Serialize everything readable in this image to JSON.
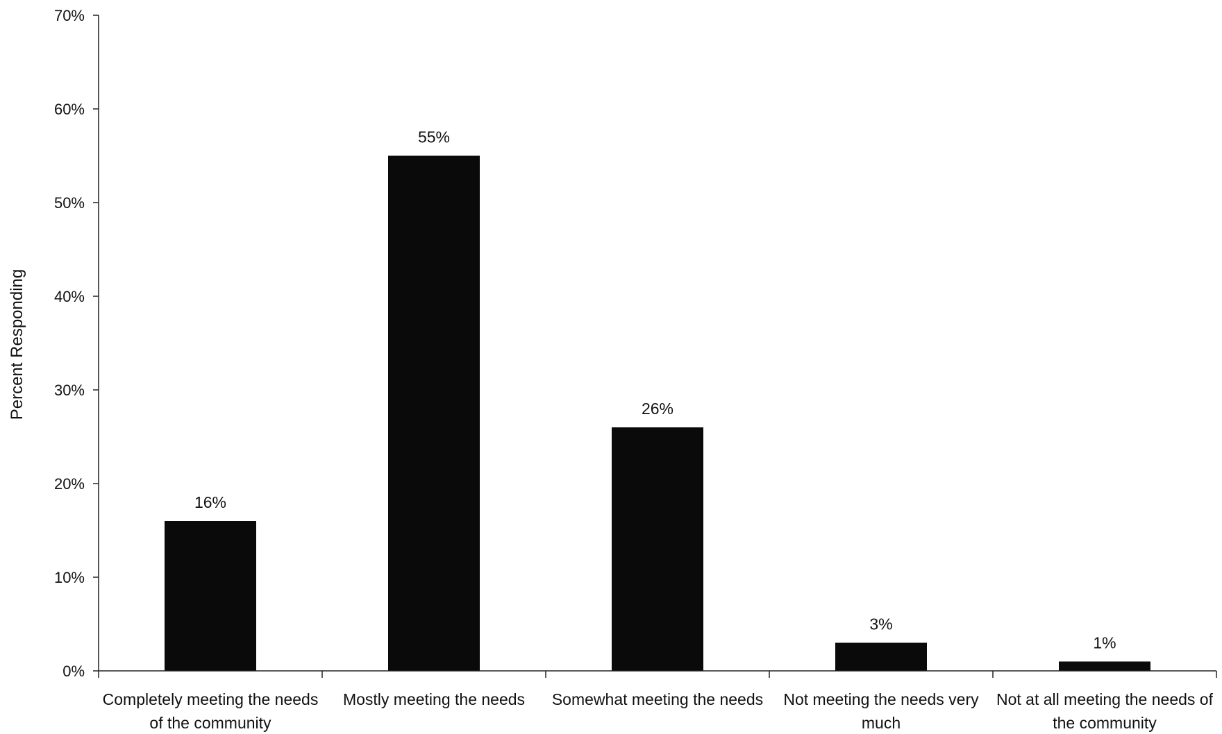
{
  "chart_data": {
    "type": "bar",
    "categories": [
      [
        "Completely meeting the needs",
        "of the community"
      ],
      [
        "Mostly meeting the needs"
      ],
      [
        "Somewhat meeting the needs"
      ],
      [
        "Not meeting the needs very",
        "much"
      ],
      [
        "Not at all meeting the needs of",
        "the community"
      ]
    ],
    "values": [
      16,
      55,
      26,
      3,
      1
    ],
    "value_labels": [
      "16%",
      "55%",
      "26%",
      "3%",
      "1%"
    ],
    "ylabel": "Percent Responding",
    "ylim": [
      0,
      70
    ],
    "yticks": [
      "0%",
      "10%",
      "20%",
      "30%",
      "40%",
      "50%",
      "60%",
      "70%"
    ],
    "grid": false,
    "colors": {
      "bar": "#0a0a0a",
      "axis": "#222222"
    }
  }
}
